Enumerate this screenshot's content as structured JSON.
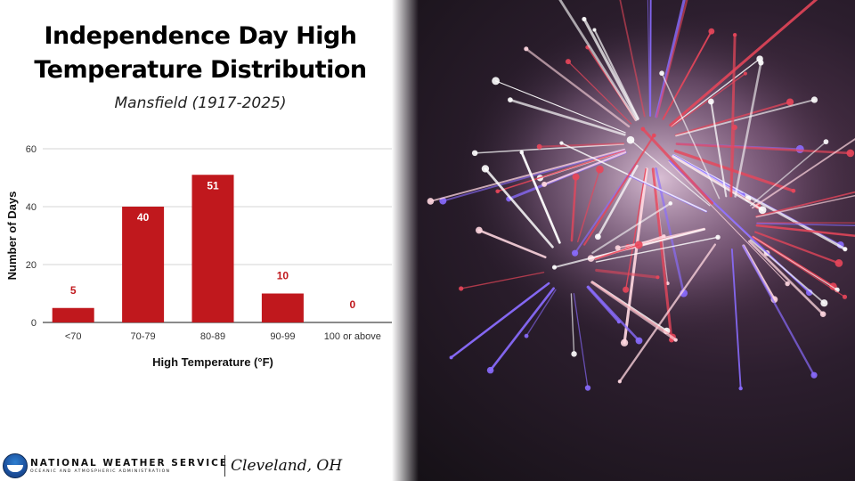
{
  "title_line1": "Independence Day High",
  "title_line2": "Temperature Distribution",
  "subtitle": "Mansfield (1917-2025)",
  "chart_data": {
    "type": "bar",
    "categories": [
      "<70",
      "70-79",
      "80-89",
      "90-99",
      "100 or above"
    ],
    "values": [
      5,
      40,
      51,
      10,
      0
    ],
    "xlabel": "High Temperature (°F)",
    "ylabel": "Number of Days",
    "ylim": [
      0,
      60
    ],
    "yticks": [
      0,
      20,
      40,
      60
    ],
    "grid": true,
    "bar_color": "#c0181d",
    "data_labels_inside": [
      "#ffffff"
    ],
    "label_color_outside": "#c0181d"
  },
  "footer": {
    "agency": "NATIONAL WEATHER SERVICE",
    "agency_sub": "OCEANIC AND ATMOSPHERIC ADMINISTRATION",
    "office": "Cleveland, OH"
  },
  "photo": {
    "icon": "fireworks-photo",
    "colors": [
      "#ffffff",
      "#e8465a",
      "#8a6cff",
      "#ffd7e0"
    ]
  }
}
